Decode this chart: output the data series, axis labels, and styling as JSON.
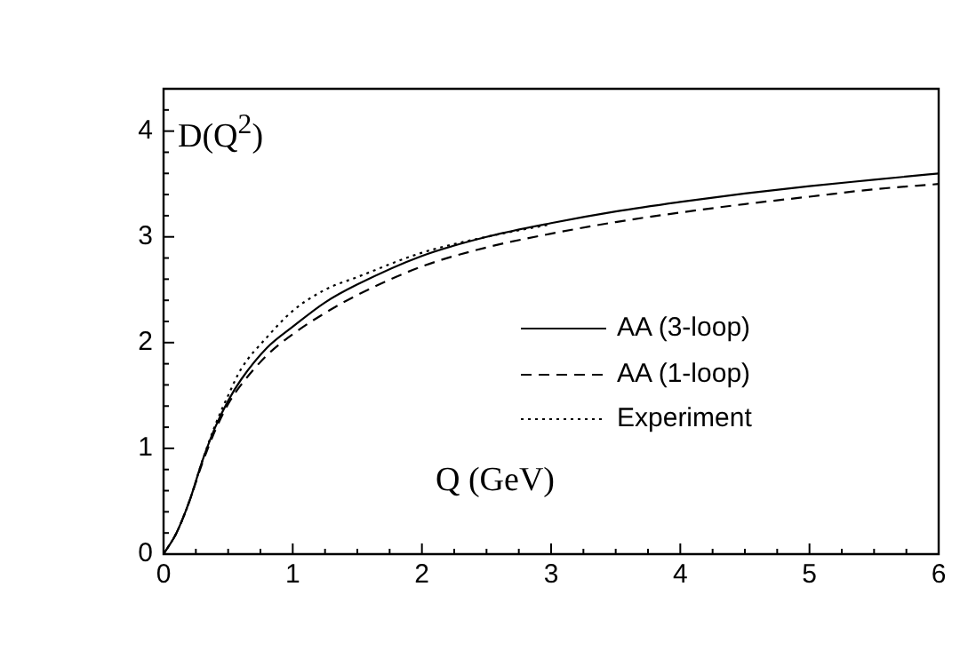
{
  "chart_data": {
    "type": "line",
    "ylabel": "D(Q$^{2}$)",
    "xlabel": "Q (GeV)",
    "xlim": [
      0,
      6
    ],
    "ylim": [
      0,
      4.4
    ],
    "xticks": [
      0,
      {
        "value": 0.25,
        "label": null
      },
      {
        "value": 0.5,
        "label": null
      },
      {
        "value": 0.75,
        "label": null
      },
      1,
      {
        "value": 1.25,
        "label": null
      },
      {
        "value": 1.5,
        "label": null
      },
      {
        "value": 1.75,
        "label": null
      },
      2,
      {
        "value": 2.25,
        "label": null
      },
      {
        "value": 2.5,
        "label": null
      },
      {
        "value": 2.75,
        "label": null
      },
      3,
      {
        "value": 3.25,
        "label": null
      },
      {
        "value": 3.5,
        "label": null
      },
      {
        "value": 3.75,
        "label": null
      },
      4,
      {
        "value": 4.25,
        "label": null
      },
      {
        "value": 4.5,
        "label": null
      },
      {
        "value": 4.75,
        "label": null
      },
      5,
      {
        "value": 5.25,
        "label": null
      },
      {
        "value": 5.5,
        "label": null
      },
      {
        "value": 5.75,
        "label": null
      },
      6
    ],
    "yticks": [
      0,
      {
        "value": 0.2,
        "label": null
      },
      {
        "value": 0.4,
        "label": null
      },
      {
        "value": 0.6,
        "label": null
      },
      {
        "value": 0.8,
        "label": null
      },
      1,
      {
        "value": 1.2,
        "label": null
      },
      {
        "value": 1.4,
        "label": null
      },
      {
        "value": 1.6,
        "label": null
      },
      {
        "value": 1.8,
        "label": null
      },
      2,
      {
        "value": 2.2,
        "label": null
      },
      {
        "value": 2.4,
        "label": null
      },
      {
        "value": 2.6,
        "label": null
      },
      {
        "value": 2.8,
        "label": null
      },
      3,
      {
        "value": 3.2,
        "label": null
      },
      {
        "value": 3.4,
        "label": null
      },
      {
        "value": 3.6,
        "label": null
      },
      {
        "value": 3.8,
        "label": null
      },
      4,
      {
        "value": 4.2,
        "label": null
      }
    ],
    "grid": false,
    "legend": "right",
    "marker": "none",
    "series": [
      {
        "name": "AA (3-loop)",
        "color": "#000000",
        "line_style": "solid",
        "x": [
          0,
          0.1,
          0.2,
          0.3,
          0.4,
          0.5,
          0.6,
          0.8,
          1,
          1.25,
          1.5,
          2,
          2.5,
          3,
          3.5,
          4,
          4.5,
          5,
          5.5,
          6
        ],
        "values": [
          0,
          0.2,
          0.5,
          0.88,
          1.2,
          1.45,
          1.65,
          1.95,
          2.15,
          2.38,
          2.55,
          2.82,
          3.0,
          3.13,
          3.24,
          3.33,
          3.41,
          3.48,
          3.54,
          3.6
        ]
      },
      {
        "name": "AA (1-loop)",
        "color": "#000000",
        "line_style": "dashed",
        "x": [
          0,
          0.1,
          0.2,
          0.3,
          0.4,
          0.5,
          0.6,
          0.8,
          1,
          1.25,
          1.5,
          2,
          2.5,
          3,
          3.5,
          4,
          4.5,
          5,
          5.5,
          6
        ],
        "values": [
          0,
          0.2,
          0.5,
          0.86,
          1.17,
          1.42,
          1.6,
          1.88,
          2.08,
          2.28,
          2.45,
          2.72,
          2.9,
          3.03,
          3.14,
          3.23,
          3.31,
          3.38,
          3.45,
          3.5
        ]
      },
      {
        "name": "Experiment",
        "color": "#000000",
        "line_style": "dotted",
        "x": [
          0,
          0.1,
          0.2,
          0.3,
          0.4,
          0.5,
          0.6,
          0.8,
          1,
          1.25,
          1.5,
          2,
          2.5,
          3
        ],
        "values": [
          0,
          0.2,
          0.5,
          0.88,
          1.22,
          1.5,
          1.75,
          2.05,
          2.3,
          2.5,
          2.62,
          2.85,
          3.0,
          3.12
        ]
      }
    ]
  }
}
